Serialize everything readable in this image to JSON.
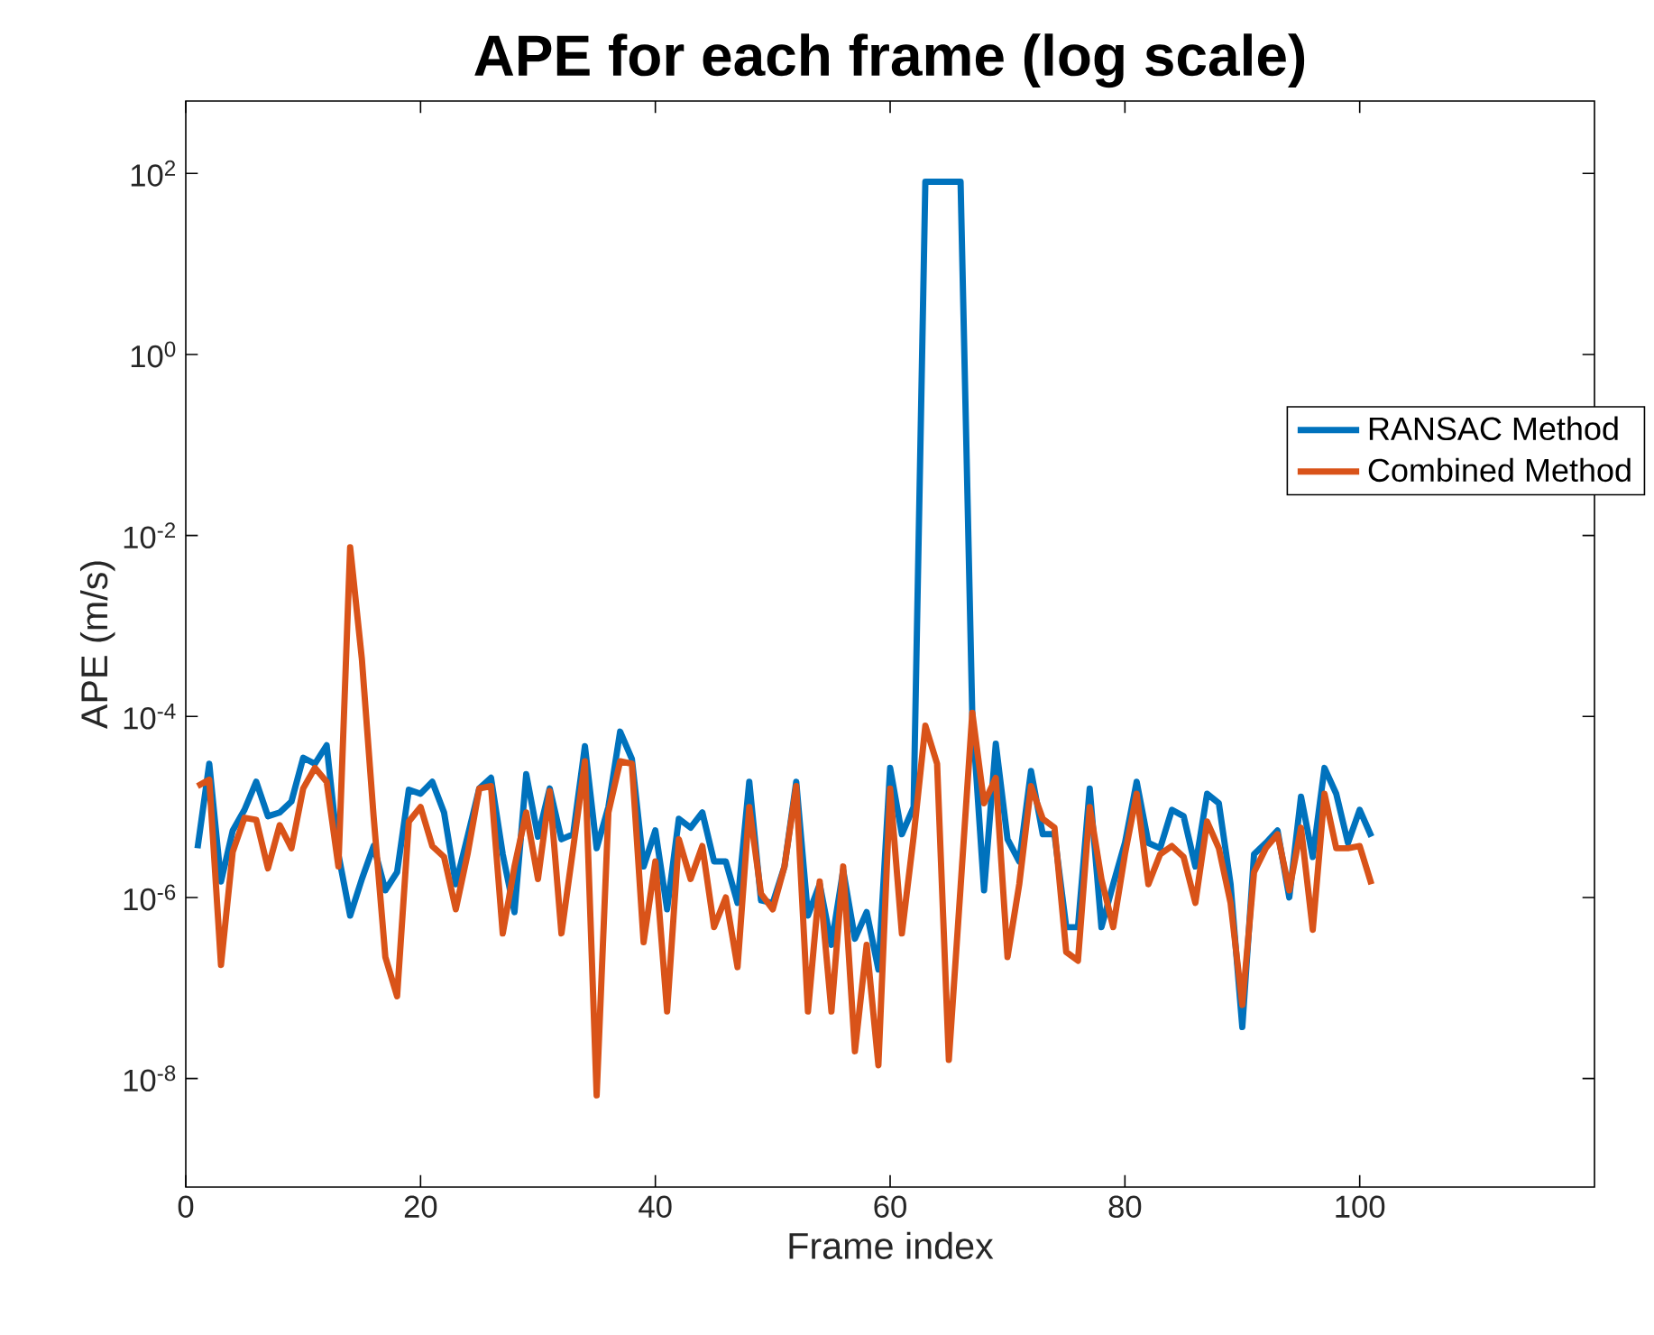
{
  "chart_data": {
    "type": "line",
    "title": "APE for each frame (log scale)",
    "xlabel": "Frame index",
    "ylabel": "APE (m/s)",
    "x": [
      1,
      2,
      3,
      4,
      5,
      6,
      7,
      8,
      9,
      10,
      11,
      12,
      13,
      14,
      15,
      16,
      17,
      18,
      19,
      20,
      21,
      22,
      23,
      24,
      25,
      26,
      27,
      28,
      29,
      30,
      31,
      32,
      33,
      34,
      35,
      36,
      37,
      38,
      39,
      40,
      41,
      42,
      43,
      44,
      45,
      46,
      47,
      48,
      49,
      50,
      51,
      52,
      53,
      54,
      55,
      56,
      57,
      58,
      59,
      60,
      61,
      62,
      63,
      64,
      65,
      66,
      67,
      68,
      69,
      70,
      71,
      72,
      73,
      74,
      75,
      76,
      77,
      78,
      79,
      80,
      81,
      82,
      83,
      84,
      85,
      86,
      87,
      88,
      89,
      90,
      91,
      92,
      93,
      94,
      95,
      96,
      97,
      98,
      99,
      100,
      101
    ],
    "series": [
      {
        "name": "RANSAC Method",
        "color": "#0072bd",
        "values": [
          3.5e-06,
          3e-05,
          1.5e-06,
          5.5e-06,
          9.3e-06,
          1.9e-05,
          7.9e-06,
          8.7e-06,
          1.15e-05,
          3.5e-05,
          3e-05,
          4.8e-05,
          3e-06,
          6.3e-07,
          1.6e-06,
          3.7e-06,
          1.2e-06,
          1.9e-06,
          1.55e-05,
          1.4e-05,
          1.9e-05,
          8.7e-06,
          1.4e-06,
          4.7e-06,
          1.6e-05,
          2.1e-05,
          3e-06,
          6.9e-07,
          2.3e-05,
          4.7e-06,
          1.6e-05,
          4.4e-06,
          5e-06,
          4.7e-05,
          3.5e-06,
          1e-05,
          6.8e-05,
          3.4e-05,
          2.2e-06,
          5.5e-06,
          7.4e-07,
          7.4e-06,
          5.9e-06,
          8.7e-06,
          2.5e-06,
          2.5e-06,
          8.7e-07,
          1.9e-05,
          9.3e-07,
          8.7e-07,
          2.2e-06,
          1.9e-05,
          6.3e-07,
          1.4e-06,
          3e-07,
          2e-06,
          3.5e-07,
          6.9e-07,
          1.6e-07,
          2.7e-05,
          5e-06,
          1e-05,
          81,
          81,
          81,
          81,
          0.0001,
          1.2e-06,
          5e-05,
          4.4e-06,
          2.5e-06,
          2.5e-05,
          5e-06,
          5e-06,
          4.7e-07,
          4.7e-07,
          1.6e-05,
          4.7e-07,
          1.4e-06,
          4e-06,
          1.9e-05,
          4e-06,
          3.5e-06,
          9.3e-06,
          7.9e-06,
          2.2e-06,
          1.4e-05,
          1.1e-05,
          1.4e-06,
          3.7e-08,
          3e-06,
          4e-06,
          5.5e-06,
          1e-06,
          1.3e-05,
          2.8e-06,
          2.7e-05,
          1.4e-05,
          4e-06,
          9.3e-06,
          4.7e-06
        ]
      },
      {
        "name": "Combined Method",
        "color": "#d95319",
        "values": [
          1.7e-05,
          2e-05,
          1.8e-07,
          3.2e-06,
          7.6e-06,
          7.2e-06,
          2.1e-06,
          6.3e-06,
          3.5e-06,
          1.6e-05,
          2.7e-05,
          1.9e-05,
          2.2e-06,
          0.0074,
          0.00043,
          7.9e-06,
          2.2e-07,
          8.1e-08,
          6.9e-06,
          1e-05,
          3.7e-06,
          2.8e-06,
          7.4e-07,
          3e-06,
          1.6e-05,
          1.7e-05,
          4e-07,
          2.2e-06,
          8.7e-06,
          1.6e-06,
          1.5e-05,
          4e-07,
          3.5e-06,
          3.2e-05,
          6.5e-09,
          8.7e-06,
          3.2e-05,
          3e-05,
          3.2e-07,
          2.5e-06,
          5.5e-08,
          4.4e-06,
          1.6e-06,
          3.7e-06,
          4.7e-07,
          1e-06,
          1.7e-07,
          1e-05,
          1.1e-06,
          7.4e-07,
          2.2e-06,
          1.7e-05,
          5.5e-08,
          1.5e-06,
          5.5e-08,
          2.2e-06,
          2e-08,
          3e-07,
          1.4e-08,
          1.6e-05,
          4e-07,
          4.7e-06,
          7.9e-05,
          3e-05,
          1.6e-08,
          1.3e-06,
          0.00011,
          1.1e-05,
          2.1e-05,
          2.2e-07,
          1.4e-06,
          1.7e-05,
          7.4e-06,
          5.9e-06,
          2.5e-07,
          2e-07,
          1e-05,
          1.6e-06,
          4.7e-07,
          3e-06,
          1.4e-05,
          1.4e-06,
          3e-06,
          3.7e-06,
          2.8e-06,
          8.7e-07,
          6.9e-06,
          3.5e-06,
          8.7e-07,
          6.5e-08,
          1.9e-06,
          3.5e-06,
          5e-06,
          1.2e-06,
          5.9e-06,
          4.4e-07,
          1.4e-05,
          3.5e-06,
          3.5e-06,
          3.7e-06,
          1.4e-06
        ]
      }
    ],
    "xlim": [
      0,
      120
    ],
    "xticks": [
      0,
      20,
      40,
      60,
      80,
      100
    ],
    "ylim": [
      6.31e-10,
      631
    ],
    "yticks": [
      {
        "value": 1e-08,
        "label": "10$^{-8}$"
      },
      {
        "value": 1e-06,
        "label": "10$^{-6}$"
      },
      {
        "value": 0.0001,
        "label": "10$^{-4}$"
      },
      {
        "value": 0.01,
        "label": "10$^{-2}$"
      },
      {
        "value": 1,
        "label": "10$^{0}$"
      },
      {
        "value": 100,
        "label": "10$^{2}$"
      }
    ],
    "log": "y",
    "grid": false,
    "legend": "right",
    "marker": "none",
    "line_style": "solid"
  }
}
